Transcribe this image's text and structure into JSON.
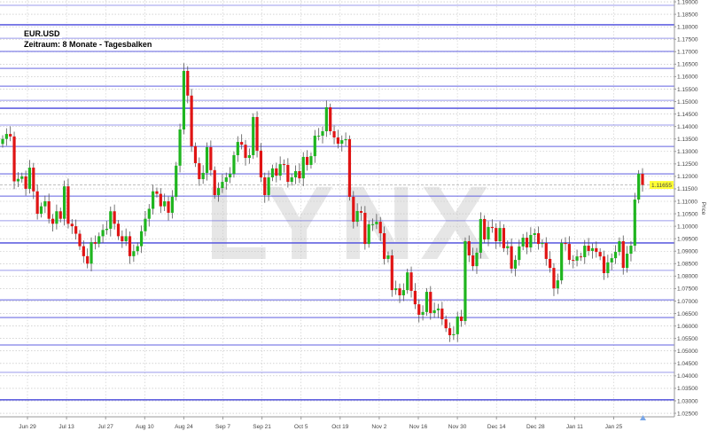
{
  "chart_data": {
    "type": "candlestick",
    "title": "EUR.USD",
    "subtitle": "Zeitraum: 8 Monate - Tagesbalken",
    "ylabel": "Price",
    "xlabel": "",
    "ylim": [
      1.025,
      1.19
    ],
    "y_ticks": [
      "1.19000",
      "1.18500",
      "1.18000",
      "1.17500",
      "1.17000",
      "1.16500",
      "1.16000",
      "1.15500",
      "1.15000",
      "1.14500",
      "1.14000",
      "1.13500",
      "1.13000",
      "1.12500",
      "1.12000",
      "1.11500",
      "1.11000",
      "1.10500",
      "1.10000",
      "1.09500",
      "1.09000",
      "1.08500",
      "1.08000",
      "1.07500",
      "1.07000",
      "1.06500",
      "1.06000",
      "1.05500",
      "1.05000",
      "1.04500",
      "1.04000",
      "1.03500",
      "1.03000",
      "1.02500"
    ],
    "x_ticks": [
      "Jun 29",
      "Jul 13",
      "Jul 27",
      "Aug 10",
      "Aug 24",
      "Sep 7",
      "Sep 21",
      "Oct 5",
      "Oct 19",
      "Nov 2",
      "Nov 16",
      "Nov 30",
      "Dec 14",
      "Dec 28",
      "Jan 11",
      "Jan 25"
    ],
    "current_price": 1.11655,
    "current_price_label": "1.11655",
    "grid": true,
    "watermark": "LYNX",
    "horizontal_levels": [
      1.1886,
      1.1808,
      1.1754,
      1.1701,
      1.1633,
      1.1562,
      1.1505,
      1.1473,
      1.1406,
      1.132,
      1.121,
      1.1121,
      1.1022,
      1.0933,
      1.0823,
      1.0705,
      1.0634,
      1.0524,
      1.0414,
      1.0304
    ],
    "first_open": 1.133,
    "close": [
      1.135,
      1.137,
      1.136,
      1.118,
      1.119,
      1.12,
      1.115,
      1.1235,
      1.114,
      1.105,
      1.108,
      1.11,
      1.103,
      1.101,
      1.106,
      1.103,
      1.116,
      1.101,
      1.1,
      1.097,
      1.092,
      1.088,
      1.085,
      1.0936,
      1.093,
      1.096,
      1.0985,
      1.099,
      1.106,
      1.101,
      1.096,
      1.094,
      1.096,
      1.088,
      1.09,
      1.092,
      1.098,
      1.103,
      1.107,
      1.114,
      1.113,
      1.108,
      1.11,
      1.1054,
      1.1118,
      1.1243,
      1.1388,
      1.1623,
      1.1524,
      1.1321,
      1.1253,
      1.1189,
      1.1214,
      1.1317,
      1.1225,
      1.1125,
      1.1153,
      1.1178,
      1.1196,
      1.121,
      1.1285,
      1.1338,
      1.1327,
      1.1274,
      1.1285,
      1.1438,
      1.1303,
      1.1196,
      1.1125,
      1.1196,
      1.1232,
      1.1203,
      1.1249,
      1.1246,
      1.1178,
      1.1196,
      1.1221,
      1.1192,
      1.1278,
      1.1246,
      1.1281,
      1.1363,
      1.1363,
      1.1381,
      1.1477,
      1.1381,
      1.1356,
      1.1331,
      1.1345,
      1.1349,
      1.1118,
      1.1018,
      1.1061,
      1.1054,
      1.0929,
      1.1008,
      1.1008,
      1.1018,
      1.0972,
      1.0869,
      1.0883,
      1.0744,
      1.0751,
      1.0723,
      1.0744,
      1.0815,
      1.0741,
      1.0687,
      1.0645,
      1.0656,
      1.0737,
      1.0652,
      1.0663,
      1.067,
      1.0627,
      1.0591,
      1.0563,
      1.0567,
      1.0638,
      1.062,
      1.094,
      1.0883,
      1.084,
      1.0894,
      1.1029,
      1.0947,
      1.0997,
      1.0993,
      1.094,
      1.0993,
      1.0912,
      1.092,
      1.083,
      1.0865,
      1.0919,
      1.0954,
      1.0915,
      1.0965,
      1.0972,
      1.0929,
      1.0933,
      1.0869,
      1.0833,
      1.0751,
      1.0783,
      1.0933,
      1.0929,
      1.0865,
      1.0862,
      1.0879,
      1.0876,
      1.0922,
      1.0901,
      1.0912,
      1.0897,
      1.0879,
      1.0812,
      1.0855,
      1.0872,
      1.0897,
      1.094,
      1.0833,
      1.089,
      1.0922,
      1.1107,
      1.121,
      1.11655
    ],
    "colors": {
      "up": "#1fb51f",
      "down": "#e01414",
      "wick": "#555555",
      "level": "#5a5ae0",
      "current_price_bg": "#ffff33"
    }
  }
}
